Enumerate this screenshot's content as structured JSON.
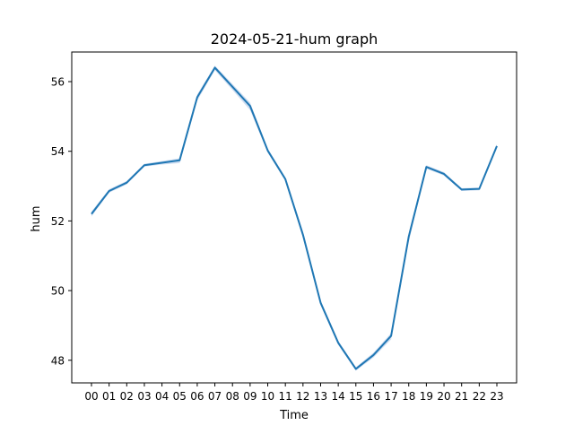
{
  "chart_data": {
    "type": "line",
    "title": "2024-05-21-hum graph",
    "xlabel": "Time",
    "ylabel": "hum",
    "categories": [
      "00",
      "01",
      "02",
      "03",
      "04",
      "05",
      "06",
      "07",
      "08",
      "09",
      "10",
      "11",
      "12",
      "13",
      "14",
      "15",
      "16",
      "17",
      "18",
      "19",
      "20",
      "21",
      "22",
      "23"
    ],
    "series": [
      {
        "name": "",
        "values": [
          52.2,
          52.86,
          53.1,
          53.6,
          53.67,
          53.74,
          55.55,
          56.4,
          55.85,
          55.3,
          54.02,
          53.2,
          51.6,
          49.65,
          48.5,
          47.75,
          48.15,
          48.7,
          51.55,
          53.55,
          53.35,
          52.9,
          52.92,
          54.15
        ],
        "band_low": [
          52.13,
          52.81,
          53.05,
          53.56,
          53.62,
          53.66,
          55.45,
          56.33,
          55.76,
          55.18,
          53.96,
          53.15,
          51.5,
          49.58,
          48.44,
          47.7,
          48.08,
          48.6,
          51.4,
          53.5,
          53.3,
          52.86,
          52.88,
          54.1
        ],
        "band_high": [
          52.27,
          52.91,
          53.15,
          53.64,
          53.72,
          53.8,
          55.63,
          56.46,
          55.93,
          55.4,
          54.08,
          53.26,
          51.7,
          49.72,
          48.56,
          47.8,
          48.22,
          48.78,
          51.65,
          53.6,
          53.4,
          52.94,
          52.96,
          54.2
        ]
      }
    ],
    "yticks": [
      48,
      50,
      52,
      54,
      56
    ],
    "ylim": [
      47.35,
      56.85
    ],
    "grid": false,
    "legend": "none",
    "colors": {
      "line": "#1f77b4",
      "band": "#aec7e8",
      "axes": "#000000"
    }
  }
}
